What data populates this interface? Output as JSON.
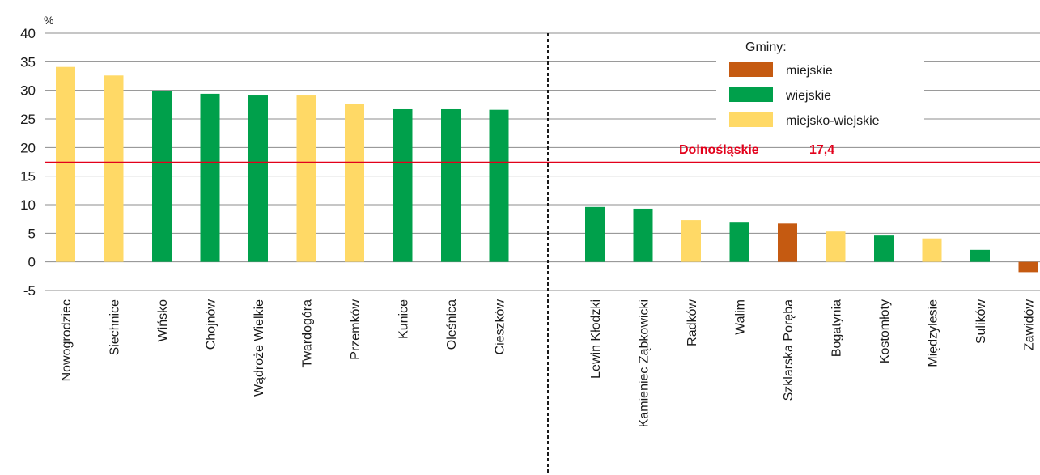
{
  "chart_data": {
    "type": "bar",
    "unit": "%",
    "ylim": [
      -5,
      40
    ],
    "yticks": [
      -5,
      0,
      5,
      10,
      15,
      20,
      25,
      30,
      35,
      40
    ],
    "grid": true,
    "legend_position": "top-right",
    "legend_title": "Gminy:",
    "series_types": [
      {
        "key": "miejskie",
        "label": "miejskie",
        "color": "#c55a11"
      },
      {
        "key": "wiejskie",
        "label": "wiejskie",
        "color": "#00a04b"
      },
      {
        "key": "miejsko-wiejskie",
        "label": "miejsko-wiejskie",
        "color": "#ffd966"
      }
    ],
    "reference_line": {
      "label": "Dolnośląskie",
      "value_text": "17,4",
      "value": 17.4,
      "color": "#e3001b"
    },
    "groups": [
      {
        "categories": [
          "Nowogrodziec",
          "Siechnice",
          "Wińsko",
          "Chojnów",
          "Wądroże Wielkie",
          "Twardogóra",
          "Przemków",
          "Kunice",
          "Oleśnica",
          "Cieszków"
        ],
        "values": [
          34.1,
          32.6,
          29.9,
          29.4,
          29.1,
          29.1,
          27.6,
          26.7,
          26.7,
          26.6
        ],
        "types": [
          "miejsko-wiejskie",
          "miejsko-wiejskie",
          "wiejskie",
          "wiejskie",
          "wiejskie",
          "miejsko-wiejskie",
          "miejsko-wiejskie",
          "wiejskie",
          "wiejskie",
          "wiejskie"
        ]
      },
      {
        "categories": [
          "Lewin Kłodzki",
          "Kamieniec Ząbkowicki",
          "Radków",
          "Walim",
          "Szklarska Poręba",
          "Bogatynia",
          "Kostomłoty",
          "Międzylesie",
          "Sulików",
          "Zawidów"
        ],
        "values": [
          9.6,
          9.3,
          7.3,
          7.0,
          6.7,
          5.3,
          4.6,
          4.1,
          2.1,
          -1.8
        ],
        "types": [
          "wiejskie",
          "wiejskie",
          "miejsko-wiejskie",
          "wiejskie",
          "miejskie",
          "miejsko-wiejskie",
          "wiejskie",
          "miejsko-wiejskie",
          "wiejskie",
          "miejskie"
        ]
      }
    ]
  }
}
